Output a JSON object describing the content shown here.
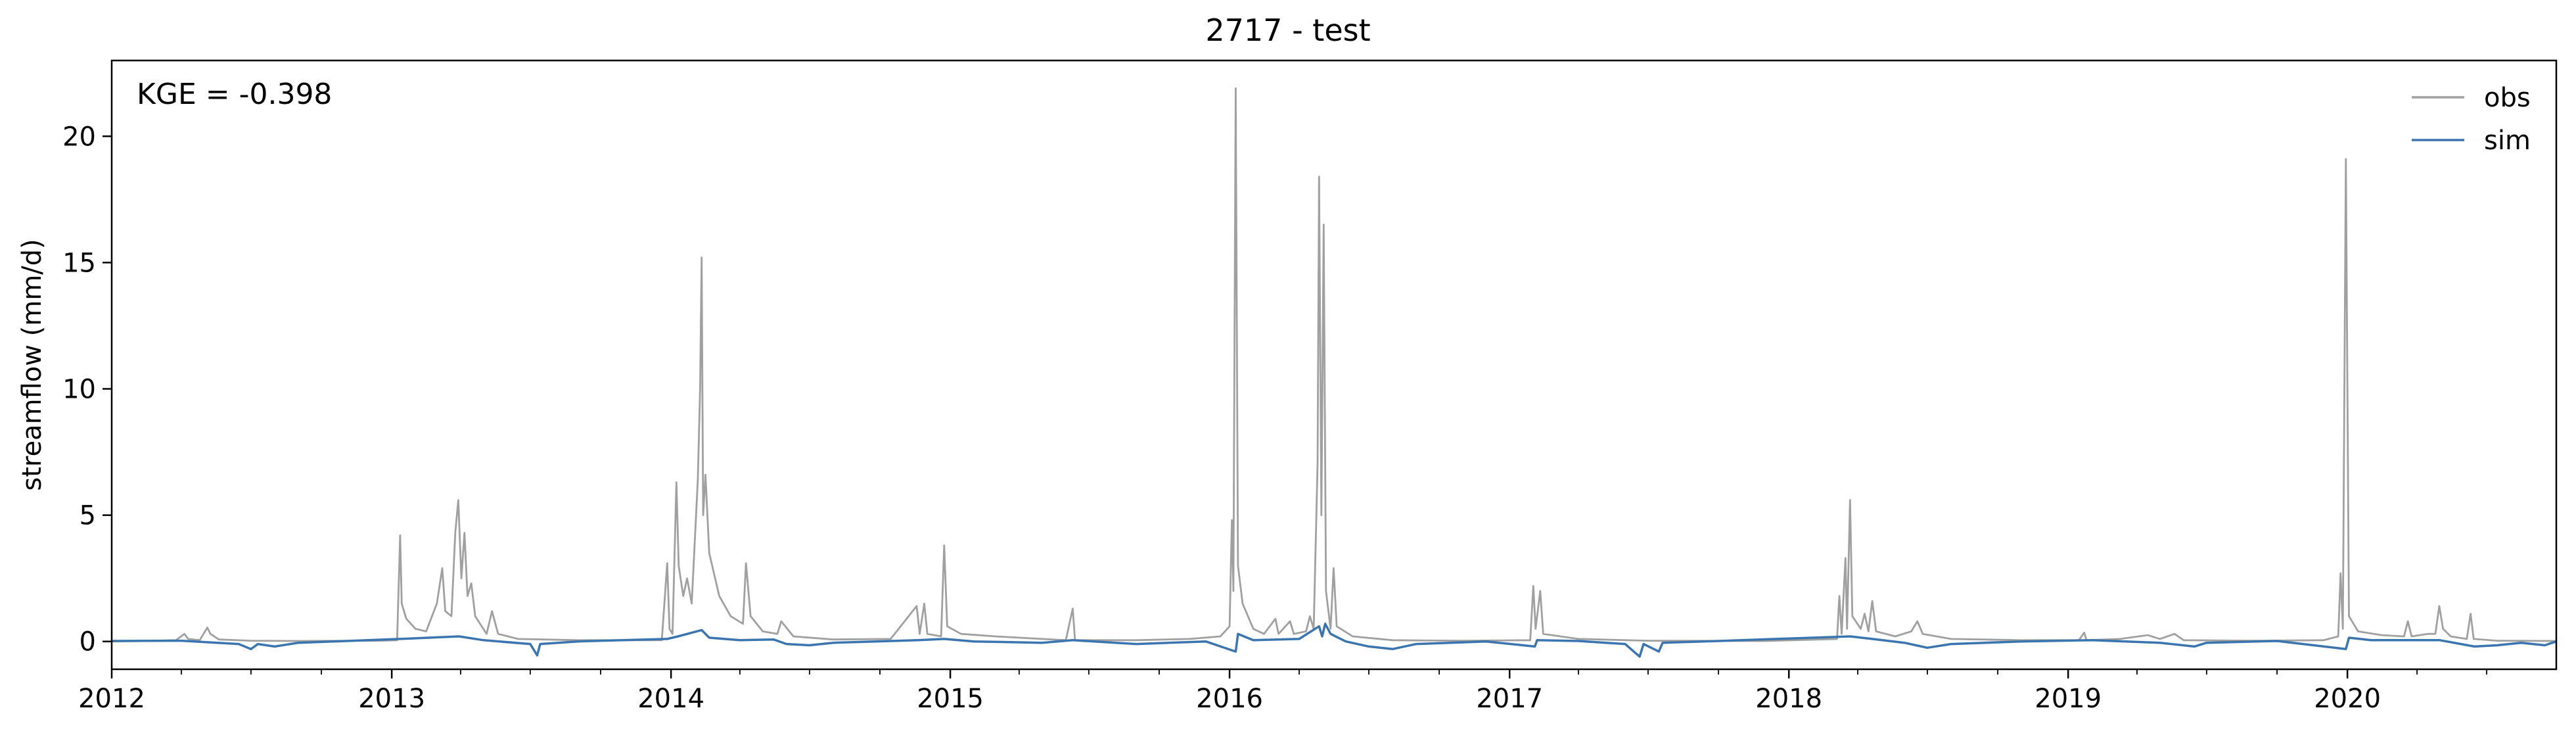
{
  "chart_data": {
    "type": "line",
    "title": "2717 - test",
    "xlabel": "",
    "ylabel": "streamflow (mm/d)",
    "xlim": [
      "2012-01-01",
      "2020-09-30"
    ],
    "ylim": [
      -1.1,
      23
    ],
    "x_ticks": [
      "2012",
      "2013",
      "2014",
      "2015",
      "2016",
      "2017",
      "2018",
      "2019",
      "2020"
    ],
    "y_ticks": [
      0,
      5,
      10,
      15,
      20
    ],
    "annotation": "KGE = -0.398",
    "legend_position": "top-right",
    "grid": false,
    "series": [
      {
        "name": "obs",
        "color": "#a0a0a0",
        "points": [
          [
            "2012-01-01",
            0.0
          ],
          [
            "2012-02-15",
            0.02
          ],
          [
            "2012-03-25",
            0.05
          ],
          [
            "2012-04-05",
            0.3
          ],
          [
            "2012-04-10",
            0.1
          ],
          [
            "2012-04-25",
            0.05
          ],
          [
            "2012-05-05",
            0.55
          ],
          [
            "2012-05-09",
            0.3
          ],
          [
            "2012-05-20",
            0.08
          ],
          [
            "2012-07-01",
            0.03
          ],
          [
            "2012-09-01",
            0.02
          ],
          [
            "2012-12-15",
            0.03
          ],
          [
            "2013-01-08",
            0.05
          ],
          [
            "2013-01-12",
            4.2
          ],
          [
            "2013-01-14",
            1.5
          ],
          [
            "2013-01-20",
            0.9
          ],
          [
            "2013-02-01",
            0.5
          ],
          [
            "2013-02-15",
            0.4
          ],
          [
            "2013-03-01",
            1.5
          ],
          [
            "2013-03-08",
            2.9
          ],
          [
            "2013-03-12",
            1.2
          ],
          [
            "2013-03-20",
            1.0
          ],
          [
            "2013-03-25",
            4.3
          ],
          [
            "2013-03-29",
            5.6
          ],
          [
            "2013-04-02",
            2.5
          ],
          [
            "2013-04-06",
            4.3
          ],
          [
            "2013-04-10",
            1.8
          ],
          [
            "2013-04-15",
            2.3
          ],
          [
            "2013-04-20",
            1.0
          ],
          [
            "2013-05-05",
            0.3
          ],
          [
            "2013-05-12",
            1.2
          ],
          [
            "2013-05-20",
            0.3
          ],
          [
            "2013-06-15",
            0.1
          ],
          [
            "2013-09-01",
            0.05
          ],
          [
            "2013-12-20",
            0.05
          ],
          [
            "2013-12-27",
            3.1
          ],
          [
            "2013-12-30",
            0.5
          ],
          [
            "2014-01-03",
            0.3
          ],
          [
            "2014-01-08",
            6.3
          ],
          [
            "2014-01-11",
            3.0
          ],
          [
            "2014-01-17",
            1.8
          ],
          [
            "2014-01-22",
            2.5
          ],
          [
            "2014-01-28",
            1.5
          ],
          [
            "2014-02-05",
            6.4
          ],
          [
            "2014-02-08",
            10.0
          ],
          [
            "2014-02-10",
            15.2
          ],
          [
            "2014-02-12",
            5.0
          ],
          [
            "2014-02-15",
            6.6
          ],
          [
            "2014-02-20",
            3.5
          ],
          [
            "2014-03-05",
            1.8
          ],
          [
            "2014-03-20",
            1.0
          ],
          [
            "2014-04-05",
            0.7
          ],
          [
            "2014-04-09",
            3.1
          ],
          [
            "2014-04-15",
            1.0
          ],
          [
            "2014-05-01",
            0.4
          ],
          [
            "2014-05-20",
            0.3
          ],
          [
            "2014-05-25",
            0.8
          ],
          [
            "2014-06-10",
            0.2
          ],
          [
            "2014-08-01",
            0.08
          ],
          [
            "2014-10-15",
            0.1
          ],
          [
            "2014-11-18",
            1.4
          ],
          [
            "2014-11-22",
            0.3
          ],
          [
            "2014-11-28",
            1.5
          ],
          [
            "2014-12-02",
            0.3
          ],
          [
            "2014-12-20",
            0.2
          ],
          [
            "2014-12-24",
            3.8
          ],
          [
            "2014-12-28",
            0.6
          ],
          [
            "2015-01-15",
            0.3
          ],
          [
            "2015-03-01",
            0.2
          ],
          [
            "2015-05-01",
            0.1
          ],
          [
            "2015-06-01",
            0.05
          ],
          [
            "2015-06-10",
            1.3
          ],
          [
            "2015-06-13",
            0.05
          ],
          [
            "2015-09-01",
            0.05
          ],
          [
            "2015-11-10",
            0.1
          ],
          [
            "2015-12-20",
            0.2
          ],
          [
            "2016-01-01",
            0.6
          ],
          [
            "2016-01-04",
            4.8
          ],
          [
            "2016-01-06",
            2.0
          ],
          [
            "2016-01-09",
            21.9
          ],
          [
            "2016-01-12",
            3.0
          ],
          [
            "2016-01-18",
            1.5
          ],
          [
            "2016-02-01",
            0.5
          ],
          [
            "2016-02-15",
            0.3
          ],
          [
            "2016-03-01",
            0.9
          ],
          [
            "2016-03-05",
            0.3
          ],
          [
            "2016-03-20",
            0.8
          ],
          [
            "2016-03-25",
            0.3
          ],
          [
            "2016-04-10",
            0.4
          ],
          [
            "2016-04-15",
            1.0
          ],
          [
            "2016-04-20",
            0.5
          ],
          [
            "2016-04-25",
            7.0
          ],
          [
            "2016-04-27",
            18.4
          ],
          [
            "2016-04-30",
            5.0
          ],
          [
            "2016-05-03",
            16.5
          ],
          [
            "2016-05-06",
            2.0
          ],
          [
            "2016-05-12",
            0.5
          ],
          [
            "2016-05-16",
            2.9
          ],
          [
            "2016-05-20",
            0.6
          ],
          [
            "2016-06-10",
            0.2
          ],
          [
            "2016-08-01",
            0.05
          ],
          [
            "2016-11-01",
            0.03
          ],
          [
            "2017-01-28",
            0.05
          ],
          [
            "2017-02-01",
            2.2
          ],
          [
            "2017-02-04",
            0.5
          ],
          [
            "2017-02-10",
            2.0
          ],
          [
            "2017-02-14",
            0.3
          ],
          [
            "2017-04-01",
            0.1
          ],
          [
            "2017-07-01",
            0.03
          ],
          [
            "2017-12-01",
            0.02
          ],
          [
            "2018-03-05",
            0.1
          ],
          [
            "2018-03-08",
            1.8
          ],
          [
            "2018-03-11",
            0.3
          ],
          [
            "2018-03-16",
            3.3
          ],
          [
            "2018-03-18",
            0.5
          ],
          [
            "2018-03-22",
            5.6
          ],
          [
            "2018-03-25",
            1.0
          ],
          [
            "2018-04-05",
            0.5
          ],
          [
            "2018-04-10",
            1.1
          ],
          [
            "2018-04-15",
            0.4
          ],
          [
            "2018-04-20",
            1.6
          ],
          [
            "2018-04-25",
            0.4
          ],
          [
            "2018-05-20",
            0.2
          ],
          [
            "2018-06-10",
            0.4
          ],
          [
            "2018-06-18",
            0.8
          ],
          [
            "2018-06-25",
            0.3
          ],
          [
            "2018-08-01",
            0.1
          ],
          [
            "2018-11-01",
            0.05
          ],
          [
            "2019-01-15",
            0.05
          ],
          [
            "2019-01-22",
            0.35
          ],
          [
            "2019-01-25",
            0.05
          ],
          [
            "2019-03-10",
            0.1
          ],
          [
            "2019-04-15",
            0.25
          ],
          [
            "2019-05-01",
            0.1
          ],
          [
            "2019-05-20",
            0.3
          ],
          [
            "2019-06-01",
            0.05
          ],
          [
            "2019-09-01",
            0.03
          ],
          [
            "2019-12-01",
            0.05
          ],
          [
            "2019-12-20",
            0.2
          ],
          [
            "2019-12-23",
            2.7
          ],
          [
            "2019-12-26",
            0.5
          ],
          [
            "2019-12-30",
            19.1
          ],
          [
            "2020-01-03",
            1.0
          ],
          [
            "2020-01-15",
            0.4
          ],
          [
            "2020-02-15",
            0.25
          ],
          [
            "2020-03-15",
            0.2
          ],
          [
            "2020-03-20",
            0.8
          ],
          [
            "2020-03-25",
            0.2
          ],
          [
            "2020-04-15",
            0.3
          ],
          [
            "2020-04-25",
            0.3
          ],
          [
            "2020-04-30",
            1.4
          ],
          [
            "2020-05-05",
            0.5
          ],
          [
            "2020-05-15",
            0.2
          ],
          [
            "2020-06-05",
            0.1
          ],
          [
            "2020-06-10",
            1.1
          ],
          [
            "2020-06-14",
            0.1
          ],
          [
            "2020-07-15",
            0.03
          ],
          [
            "2020-09-30",
            0.02
          ]
        ]
      },
      {
        "name": "sim",
        "color": "#3b75af",
        "points": [
          [
            "2012-01-01",
            0.02
          ],
          [
            "2012-04-01",
            0.03
          ],
          [
            "2012-06-15",
            -0.1
          ],
          [
            "2012-07-01",
            -0.3
          ],
          [
            "2012-07-10",
            -0.1
          ],
          [
            "2012-08-01",
            -0.2
          ],
          [
            "2012-09-01",
            -0.05
          ],
          [
            "2012-12-01",
            0.05
          ],
          [
            "2013-01-12",
            0.1
          ],
          [
            "2013-03-30",
            0.2
          ],
          [
            "2013-05-01",
            0.05
          ],
          [
            "2013-07-01",
            -0.1
          ],
          [
            "2013-07-10",
            -0.55
          ],
          [
            "2013-07-14",
            -0.1
          ],
          [
            "2013-09-01",
            0.0
          ],
          [
            "2013-12-27",
            0.1
          ],
          [
            "2014-01-10",
            0.2
          ],
          [
            "2014-02-10",
            0.45
          ],
          [
            "2014-02-20",
            0.15
          ],
          [
            "2014-04-01",
            0.05
          ],
          [
            "2014-05-15",
            0.08
          ],
          [
            "2014-06-01",
            -0.1
          ],
          [
            "2014-07-01",
            -0.15
          ],
          [
            "2014-08-01",
            -0.05
          ],
          [
            "2014-11-20",
            0.05
          ],
          [
            "2014-12-24",
            0.1
          ],
          [
            "2015-02-01",
            0.0
          ],
          [
            "2015-05-01",
            -0.05
          ],
          [
            "2015-06-10",
            0.05
          ],
          [
            "2015-09-01",
            -0.1
          ],
          [
            "2015-12-01",
            0.0
          ],
          [
            "2016-01-09",
            -0.4
          ],
          [
            "2016-01-12",
            0.3
          ],
          [
            "2016-02-01",
            0.05
          ],
          [
            "2016-04-01",
            0.1
          ],
          [
            "2016-04-27",
            0.6
          ],
          [
            "2016-05-01",
            0.2
          ],
          [
            "2016-05-05",
            0.7
          ],
          [
            "2016-05-12",
            0.3
          ],
          [
            "2016-06-01",
            0.0
          ],
          [
            "2016-07-01",
            -0.2
          ],
          [
            "2016-08-01",
            -0.3
          ],
          [
            "2016-09-01",
            -0.1
          ],
          [
            "2016-12-01",
            0.0
          ],
          [
            "2017-02-03",
            -0.2
          ],
          [
            "2017-02-06",
            0.05
          ],
          [
            "2017-04-01",
            0.02
          ],
          [
            "2017-06-01",
            -0.1
          ],
          [
            "2017-06-20",
            -0.6
          ],
          [
            "2017-06-25",
            -0.1
          ],
          [
            "2017-07-15",
            -0.4
          ],
          [
            "2017-07-20",
            -0.05
          ],
          [
            "2017-10-01",
            0.02
          ],
          [
            "2018-03-22",
            0.2
          ],
          [
            "2018-04-20",
            0.1
          ],
          [
            "2018-06-01",
            -0.05
          ],
          [
            "2018-07-01",
            -0.25
          ],
          [
            "2018-08-01",
            -0.1
          ],
          [
            "2018-11-01",
            0.0
          ],
          [
            "2019-02-01",
            0.05
          ],
          [
            "2019-05-01",
            -0.05
          ],
          [
            "2019-06-15",
            -0.2
          ],
          [
            "2019-07-01",
            -0.05
          ],
          [
            "2019-10-01",
            0.02
          ],
          [
            "2019-12-30",
            -0.3
          ],
          [
            "2020-01-03",
            0.15
          ],
          [
            "2020-02-01",
            0.05
          ],
          [
            "2020-05-01",
            0.05
          ],
          [
            "2020-06-15",
            -0.2
          ],
          [
            "2020-07-15",
            -0.15
          ],
          [
            "2020-08-15",
            -0.05
          ],
          [
            "2020-09-15",
            -0.15
          ],
          [
            "2020-09-30",
            0.0
          ]
        ]
      }
    ]
  }
}
